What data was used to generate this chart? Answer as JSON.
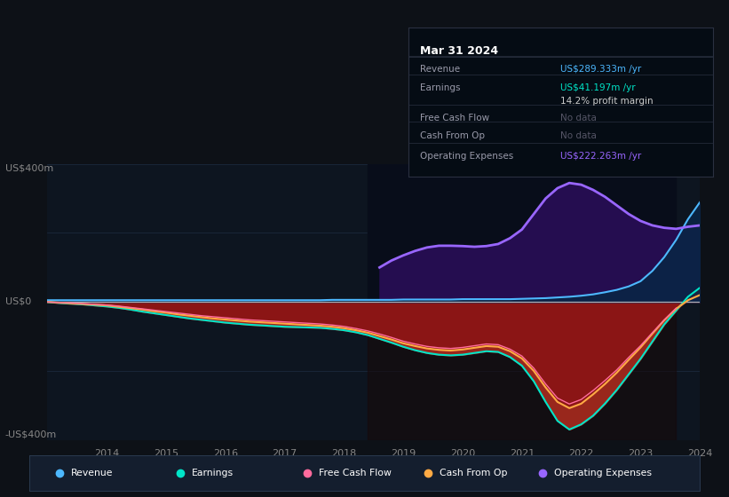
{
  "background_color": "#0d1117",
  "plot_bg_color": "#0d1520",
  "title": "Mar 31 2024",
  "years": [
    2013.0,
    2013.2,
    2013.4,
    2013.6,
    2013.8,
    2014.0,
    2014.2,
    2014.4,
    2014.6,
    2014.8,
    2015.0,
    2015.2,
    2015.4,
    2015.6,
    2015.8,
    2016.0,
    2016.2,
    2016.4,
    2016.6,
    2016.8,
    2017.0,
    2017.2,
    2017.4,
    2017.6,
    2017.8,
    2018.0,
    2018.2,
    2018.4,
    2018.6,
    2018.8,
    2019.0,
    2019.2,
    2019.4,
    2019.6,
    2019.8,
    2020.0,
    2020.2,
    2020.4,
    2020.6,
    2020.8,
    2021.0,
    2021.2,
    2021.4,
    2021.6,
    2021.8,
    2022.0,
    2022.2,
    2022.4,
    2022.6,
    2022.8,
    2023.0,
    2023.2,
    2023.4,
    2023.6,
    2023.8,
    2024.0
  ],
  "revenue": [
    5,
    5,
    5,
    5,
    5,
    5,
    5,
    5,
    5,
    5,
    5,
    5,
    5,
    5,
    5,
    5,
    5,
    5,
    5,
    5,
    5,
    5,
    5,
    5,
    6,
    6,
    6,
    6,
    6,
    6,
    7,
    7,
    7,
    7,
    7,
    8,
    8,
    8,
    8,
    8,
    9,
    10,
    11,
    13,
    15,
    18,
    22,
    28,
    35,
    45,
    60,
    90,
    130,
    180,
    240,
    289
  ],
  "earnings": [
    0,
    -3,
    -5,
    -7,
    -10,
    -13,
    -17,
    -22,
    -28,
    -33,
    -38,
    -43,
    -48,
    -52,
    -56,
    -60,
    -63,
    -66,
    -68,
    -70,
    -72,
    -73,
    -74,
    -75,
    -78,
    -82,
    -88,
    -96,
    -107,
    -118,
    -130,
    -140,
    -148,
    -153,
    -155,
    -153,
    -148,
    -143,
    -145,
    -160,
    -185,
    -230,
    -290,
    -345,
    -370,
    -355,
    -330,
    -295,
    -255,
    -210,
    -165,
    -115,
    -65,
    -25,
    15,
    41
  ],
  "cash_from_op": [
    0,
    -2,
    -4,
    -6,
    -8,
    -10,
    -14,
    -18,
    -22,
    -27,
    -31,
    -36,
    -40,
    -44,
    -48,
    -51,
    -54,
    -57,
    -59,
    -61,
    -63,
    -65,
    -67,
    -69,
    -72,
    -76,
    -82,
    -89,
    -99,
    -109,
    -120,
    -128,
    -135,
    -139,
    -141,
    -138,
    -133,
    -128,
    -130,
    -143,
    -164,
    -200,
    -248,
    -290,
    -308,
    -295,
    -268,
    -238,
    -205,
    -168,
    -132,
    -92,
    -53,
    -20,
    5,
    20
  ],
  "free_cash_flow": [
    0,
    -2,
    -3,
    -5,
    -7,
    -9,
    -12,
    -16,
    -20,
    -24,
    -28,
    -32,
    -36,
    -40,
    -43,
    -46,
    -49,
    -52,
    -54,
    -56,
    -58,
    -60,
    -62,
    -64,
    -67,
    -71,
    -77,
    -84,
    -93,
    -103,
    -114,
    -122,
    -129,
    -133,
    -135,
    -132,
    -127,
    -122,
    -124,
    -137,
    -157,
    -192,
    -238,
    -279,
    -296,
    -283,
    -257,
    -228,
    -197,
    -161,
    -127,
    -89,
    -52,
    -18,
    null,
    null
  ],
  "operating_expenses": [
    null,
    null,
    null,
    null,
    null,
    null,
    null,
    null,
    null,
    null,
    null,
    null,
    null,
    null,
    null,
    null,
    null,
    null,
    null,
    null,
    null,
    null,
    null,
    null,
    null,
    null,
    null,
    null,
    100,
    120,
    135,
    148,
    158,
    163,
    163,
    162,
    160,
    162,
    168,
    185,
    210,
    255,
    300,
    330,
    345,
    340,
    325,
    305,
    280,
    255,
    235,
    222,
    215,
    212,
    218,
    222
  ],
  "ylim": [
    -400,
    400
  ],
  "color_revenue": "#4db8ff",
  "color_earnings": "#00e5c8",
  "color_free_cash_flow": "#ff6b9d",
  "color_cash_from_op": "#ffaa44",
  "color_operating_expenses": "#9966ff",
  "highlight_start": 2018.4,
  "highlight_end": 2023.6,
  "grid_color": "#1e2d42",
  "zero_line_color": "#cccccc",
  "tooltip_bg": "#050c14",
  "xtick_years": [
    2014,
    2015,
    2016,
    2017,
    2018,
    2019,
    2020,
    2021,
    2022,
    2023,
    2024
  ]
}
